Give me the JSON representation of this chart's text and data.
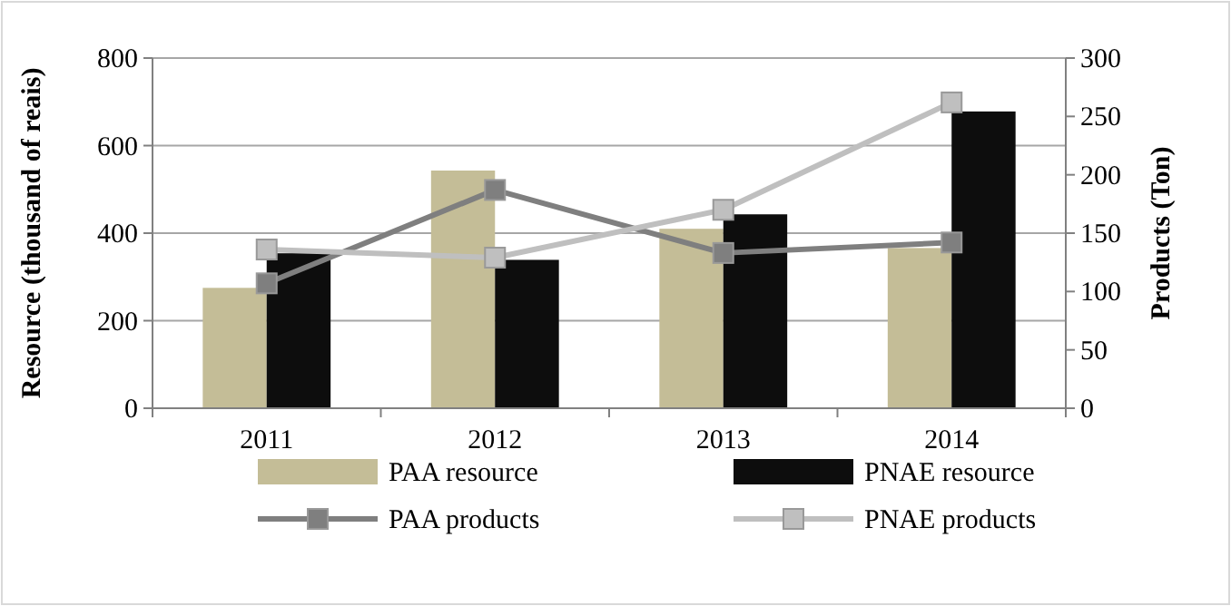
{
  "chart_data": {
    "type": "bar",
    "categories": [
      "2011",
      "2012",
      "2013",
      "2014"
    ],
    "ylabel": "Resource (thousand of reais)",
    "y2label": "Products (Ton)",
    "ylim": [
      0,
      800
    ],
    "yticks": [
      0,
      200,
      400,
      600,
      800
    ],
    "y2lim": [
      0,
      300
    ],
    "y2ticks": [
      0,
      50,
      100,
      150,
      200,
      250,
      300
    ],
    "grid": "y",
    "legend": "bottom",
    "marker": "square",
    "series": [
      {
        "name": "PAA resource",
        "color": "#c4bd97",
        "values": [
          275,
          543,
          410,
          366
        ]
      },
      {
        "name": "PNAE resource",
        "color": "#0d0d0d",
        "values": [
          354,
          339,
          443,
          678
        ]
      },
      {
        "name": "PAA products",
        "type": "line",
        "axis": "y2",
        "color": "#7f7f7f",
        "values": [
          107,
          187,
          133,
          142
        ]
      },
      {
        "name": "PNAE products",
        "type": "line",
        "axis": "y2",
        "color": "#bfbfbf",
        "values": [
          136,
          129,
          170,
          262
        ]
      }
    ]
  }
}
